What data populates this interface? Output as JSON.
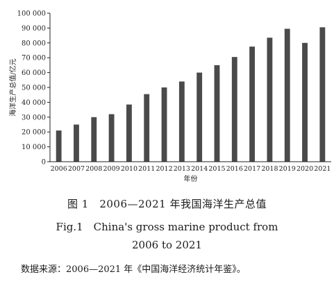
{
  "chart_data": {
    "type": "bar",
    "categories": [
      "2006",
      "2007",
      "2008",
      "2009",
      "2010",
      "2011",
      "2012",
      "2013",
      "2014",
      "2015",
      "2016",
      "2017",
      "2018",
      "2019",
      "2020",
      "2021"
    ],
    "values": [
      21000,
      25000,
      30000,
      32000,
      38500,
      45500,
      50000,
      54000,
      60000,
      65000,
      70500,
      77500,
      83500,
      89500,
      80000,
      90500
    ],
    "ylabel": "海洋生产总值/亿元",
    "xlabel": "年份",
    "ylim": [
      0,
      100000
    ],
    "yticks": [
      0,
      10000,
      20000,
      30000,
      40000,
      50000,
      60000,
      70000,
      80000,
      90000,
      100000
    ],
    "ytick_labels": [
      "0",
      "10 000",
      "20 000",
      "30 000",
      "40 000",
      "50 000",
      "60 000",
      "70 000",
      "80 000",
      "90 000",
      "100 000"
    ],
    "bar_color": "#4a4a4a",
    "grid": false
  },
  "captions": {
    "cn": "图 1　2006—2021 年我国海洋生产总值",
    "en_line1": "Fig.1　China's gross marine product from",
    "en_line2": "2006 to 2021",
    "source": "数据来源：2006—2021 年《中国海洋经济统计年鉴》。"
  }
}
